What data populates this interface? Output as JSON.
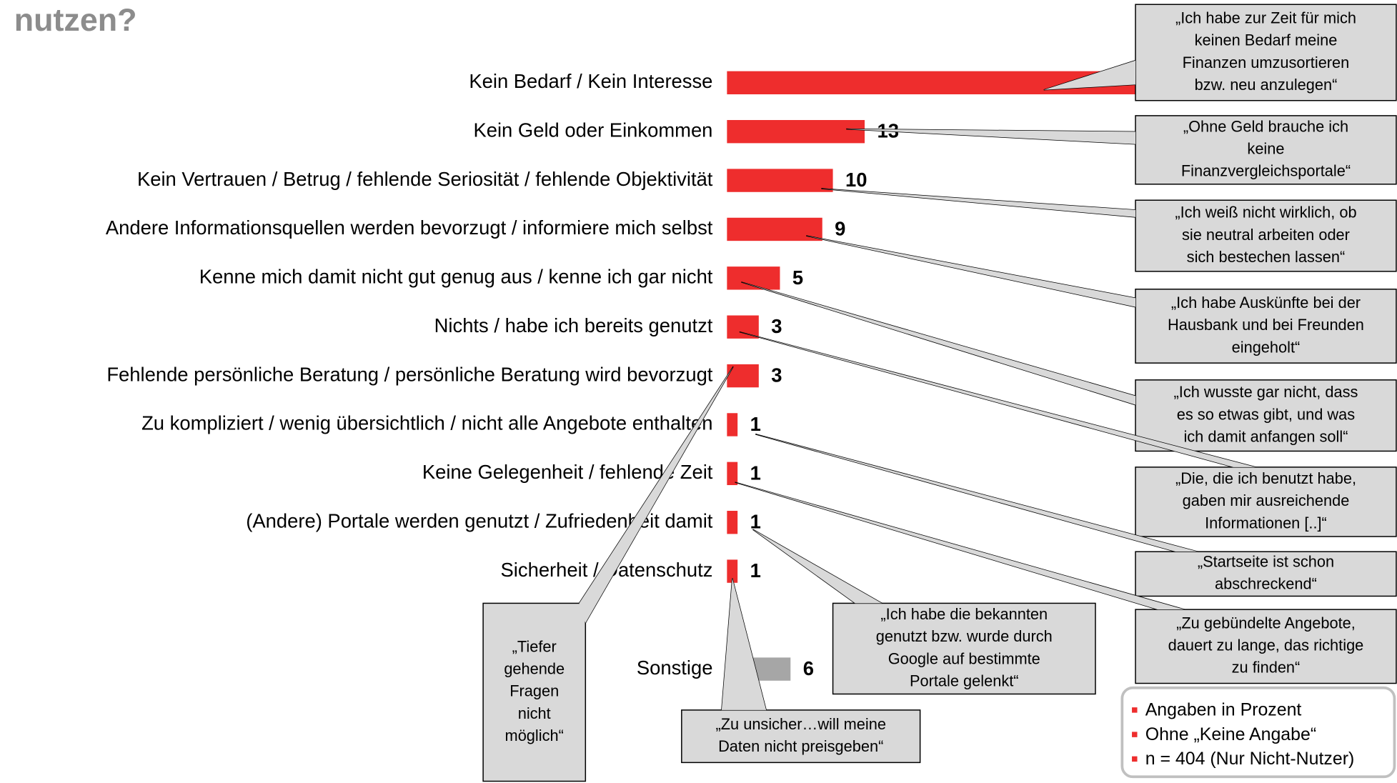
{
  "chart_data": {
    "type": "bar",
    "orientation": "horizontal",
    "title": "nutzen?",
    "categories": [
      "Kein Bedarf / Kein Interesse",
      "Kein Geld oder Einkommen",
      "Kein Vertrauen / Betrug / fehlende Seriosität / fehlende Objektivität",
      "Andere Informationsquellen werden bevorzugt / informiere mich selbst",
      "Kenne mich damit nicht gut genug aus / kenne ich gar nicht",
      "Nichts / habe ich bereits genutzt",
      "Fehlende persönliche Beratung / persönliche Beratung wird bevorzugt",
      "Zu kompliziert / wenig übersichtlich / nicht alle Angebote enthalten",
      "Keine Gelegenheit / fehlende Zeit",
      "(Andere) Portale werden genutzt / Zufriedenheit damit",
      "Sicherheit / Datenschutz"
    ],
    "values": [
      45,
      13,
      10,
      9,
      5,
      3,
      3,
      1,
      1,
      1,
      1
    ],
    "color": "#ee2d2d",
    "other": {
      "label": "Sonstige",
      "value": 6,
      "color": "#a6a6a6"
    },
    "xlim": [
      0,
      60
    ],
    "annotations": [
      {
        "lines": [
          "„Ich habe zur Zeit für mich",
          "keinen Bedarf meine",
          "Finanzen umzusortieren",
          "bzw. neu anzulegen“"
        ]
      },
      {
        "lines": [
          "„Ohne Geld brauche ich",
          "keine",
          "Finanzvergleichsportale“"
        ]
      },
      {
        "lines": [
          "„Ich weiß nicht wirklich, ob",
          "sie neutral arbeiten oder",
          "sich bestechen lassen“"
        ]
      },
      {
        "lines": [
          "„Ich habe Auskünfte bei der",
          "Hausbank und bei Freunden",
          "eingeholt“"
        ]
      },
      {
        "lines": [
          "„Ich wusste gar nicht, dass",
          "es so etwas gibt, und was",
          "ich damit anfangen soll“"
        ]
      },
      {
        "lines": [
          "„Die, die ich benutzt habe,",
          "gaben mir ausreichende",
          "Informationen [..]“"
        ]
      },
      {
        "lines": [
          "„Startseite ist schon",
          "abschreckend“"
        ]
      },
      {
        "lines": [
          "„Zu gebündelte Angebote,",
          "dauert zu lange, das richtige",
          "zu finden“"
        ]
      },
      {
        "lines": [
          "„Ich habe die bekannten",
          "genutzt bzw. wurde durch",
          "Google auf bestimmte",
          "Portale gelenkt“"
        ]
      },
      {
        "lines": [
          "„Zu unsicher…will meine",
          "Daten nicht preisgeben“"
        ]
      },
      {
        "lines": [
          "„Tiefer",
          "gehende",
          "Fragen",
          "nicht",
          "möglich“"
        ]
      }
    ],
    "notes": [
      "Angaben in Prozent",
      "Ohne „Keine Angabe“",
      "n = 404 (Nur Nicht-Nutzer)"
    ]
  }
}
